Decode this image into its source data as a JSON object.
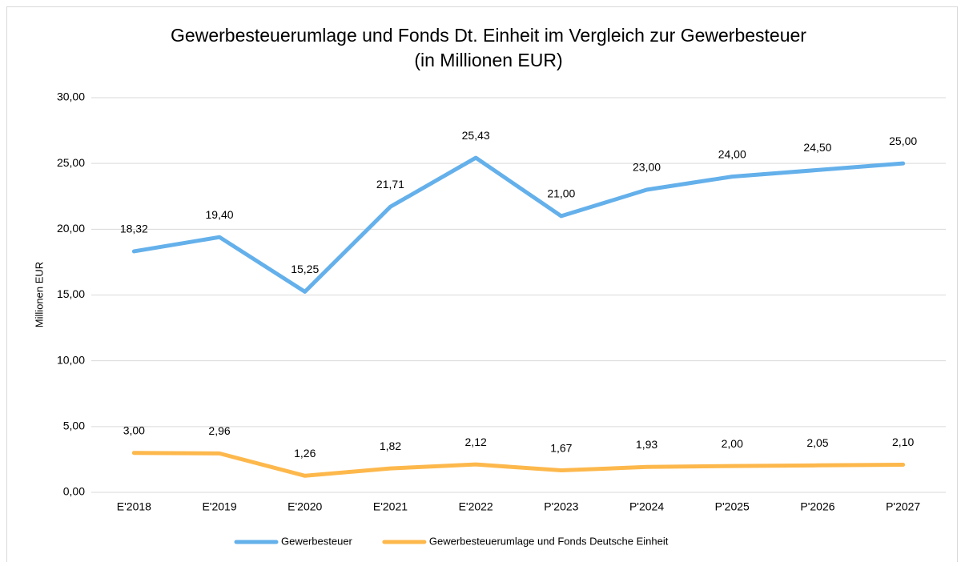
{
  "chart_data": {
    "type": "line",
    "title": "Gewerbesteuerumlage und Fonds Dt. Einheit im Vergleich zur Gewerbesteuer",
    "subtitle": "(in Millionen EUR)",
    "y_label": "Millionen EUR",
    "categories": [
      "E'2018",
      "E'2019",
      "E'2020",
      "E'2021",
      "E'2022",
      "P'2023",
      "P'2024",
      "P'2025",
      "P'2026",
      "P'2027"
    ],
    "series": [
      {
        "name": "Gewerbesteuer",
        "color": "#64b0eb",
        "values": [
          18.32,
          19.4,
          15.25,
          21.71,
          25.43,
          21.0,
          23.0,
          24.0,
          24.5,
          25.0
        ],
        "value_labels": [
          "18,32",
          "19,40",
          "15,25",
          "21,71",
          "25,43",
          "21,00",
          "23,00",
          "24,00",
          "24,50",
          "25,00"
        ]
      },
      {
        "name": "Gewerbesteuerumlage und Fonds Deutsche Einheit",
        "color": "#fdb84c",
        "values": [
          3.0,
          2.96,
          1.26,
          1.82,
          2.12,
          1.67,
          1.93,
          2.0,
          2.05,
          2.1
        ],
        "value_labels": [
          "3,00",
          "2,96",
          "1,26",
          "1,82",
          "2,12",
          "1,67",
          "1,93",
          "2,00",
          "2,05",
          "2,10"
        ]
      }
    ],
    "ylim": [
      0,
      30
    ],
    "yticks": [
      {
        "value": 0,
        "label": "0,00"
      },
      {
        "value": 5,
        "label": "5,00"
      },
      {
        "value": 10,
        "label": "10,00"
      },
      {
        "value": 15,
        "label": "15,00"
      },
      {
        "value": 20,
        "label": "20,00"
      },
      {
        "value": 25,
        "label": "25,00"
      },
      {
        "value": 30,
        "label": "30,00"
      }
    ],
    "grid": true,
    "legend": "bottom"
  }
}
